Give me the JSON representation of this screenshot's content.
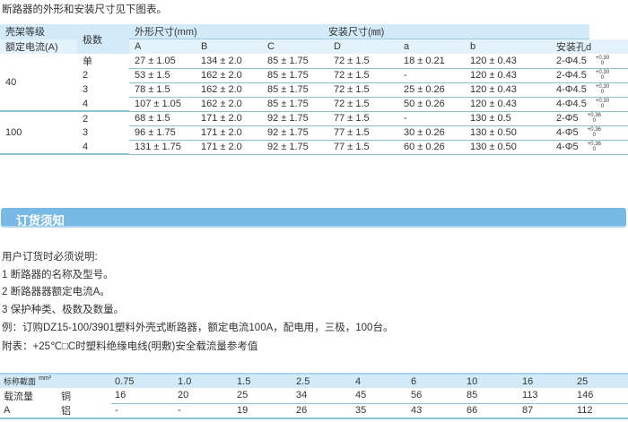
{
  "intro": "断路器的外形和安装尺寸见下图表。",
  "table1": {
    "h_frame1": "壳架等级",
    "h_frame2": "额定电流(A)",
    "h_poles": "极数",
    "h_outer": "外形尺寸(mm)",
    "h_mount": "安装尺寸(㎜)",
    "cols": [
      "A",
      "B",
      "C",
      "D",
      "a",
      "b",
      "安装孔d"
    ],
    "groups": [
      {
        "rating": "40",
        "rows": [
          {
            "poles": "单",
            "A": "27 ± 1.05",
            "B": "134 ± 2.0",
            "C": "85 ± 1.75",
            "D": "72 ± 1.5",
            "a": "18 ± 0.21",
            "b": "120 ± 0.43",
            "d": "2-Φ4.5",
            "tol_up": "+0.30",
            "tol_lo": "0"
          },
          {
            "poles": "2",
            "A": "53 ± 1.5",
            "B": "162 ± 2.0",
            "C": "85 ± 1.75",
            "D": "72 ± 1.5",
            "a": "-",
            "b": "120 ± 0.43",
            "d": "2-Φ4.5",
            "tol_up": "+0.30",
            "tol_lo": "0"
          },
          {
            "poles": "3",
            "A": "78 ± 1.5",
            "B": "162 ± 2.0",
            "C": "85 ± 1.75",
            "D": "72 ± 1.5",
            "a": "25 ± 0.26",
            "b": "120 ± 0.43",
            "d": "4-Φ4.5",
            "tol_up": "+0.30",
            "tol_lo": "0"
          },
          {
            "poles": "4",
            "A": "107 ± 1.05",
            "B": "162 ± 2.0",
            "C": "85 ± 1.75",
            "D": "72 ± 1.5",
            "a": "50 ± 0.26",
            "b": "120 ± 0.43",
            "d": "4-Φ4.5",
            "tol_up": "+0.30",
            "tol_lo": "0"
          }
        ]
      },
      {
        "rating": "100",
        "rows": [
          {
            "poles": "2",
            "A": "68 ± 1.5",
            "B": "171 ± 2.0",
            "C": "92 ± 1.75",
            "D": "77 ± 1.5",
            "a": "-",
            "b": "130 ± 0.5",
            "d": "2-Φ5",
            "tol_up": "+0.36",
            "tol_lo": "0"
          },
          {
            "poles": "3",
            "A": "96 ± 1.75",
            "B": "171 ± 2.0",
            "C": "92 ± 1.75",
            "D": "77 ± 1.5",
            "a": "30 ± 0.26",
            "b": "130 ± 0.50",
            "d": "4-Φ5",
            "tol_up": "+0.36",
            "tol_lo": "0"
          },
          {
            "poles": "4",
            "A": "131 ± 1.75",
            "B": "171 ± 2.0",
            "C": "92 ± 1.75",
            "D": "77 ± 1.5",
            "a": "60 ± 0.26",
            "b": "130 ± 0.50",
            "d": "4-Φ5",
            "tol_up": "+0.36",
            "tol_lo": "0"
          }
        ]
      }
    ]
  },
  "section_title": "订货须知",
  "notes": [
    "用户订货时必须说明:",
    "1 断路器的名称及型号。",
    "2 断路器器额定电流A。",
    "3 保护种类、极数及数量。",
    "例：订购DZ15-100/3901塑料外壳式断路器，额定电流100A，配电用，三极，100台。",
    "附表：+25℃□C时塑料绝缘电线(明敷)安全载流量参考值"
  ],
  "table2": {
    "h_label": "标称截面",
    "h_unit": "mm²",
    "sections": [
      "0.75",
      "1.0",
      "1.5",
      "2.5",
      "4",
      "6",
      "10",
      "16",
      "25"
    ],
    "label1": "载流量",
    "label2": "A",
    "copper": "铜",
    "aluminum": "铝",
    "copper_vals": [
      "16",
      "20",
      "25",
      "34",
      "45",
      "56",
      "85",
      "113",
      "146"
    ],
    "aluminum_vals": [
      "-",
      "-",
      "19",
      "26",
      "35",
      "43",
      "66",
      "87",
      "112"
    ]
  }
}
